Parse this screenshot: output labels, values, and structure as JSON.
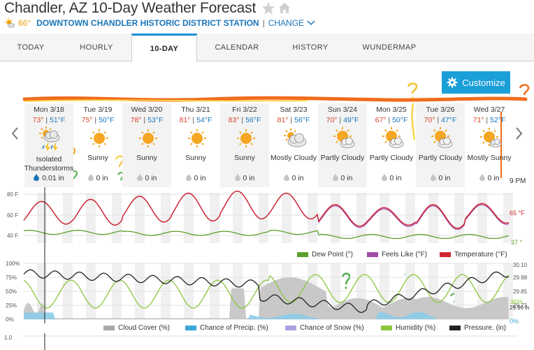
{
  "header": {
    "title": "Chandler, AZ 10-Day Weather Forecast",
    "current_temp": "66°",
    "station": "DOWNTOWN CHANDLER HISTORIC DISTRICT STATION",
    "separator": "|",
    "change_label": "CHANGE"
  },
  "tabs": [
    {
      "label": "TODAY"
    },
    {
      "label": "HOURLY"
    },
    {
      "label": "10-DAY",
      "active": true
    },
    {
      "label": "CALENDAR"
    },
    {
      "label": "HISTORY"
    },
    {
      "label": "WUNDERMAP"
    }
  ],
  "customize_label": "Customize",
  "days": [
    {
      "name": "Mon 3/18",
      "hi": "73°",
      "lo": "51°F",
      "cond": "Isolated Thunderstorms",
      "precip": "0.01 in",
      "icon": "thunderstorm-icon"
    },
    {
      "name": "Tue 3/19",
      "hi": "75°",
      "lo": "50°F",
      "cond": "Sunny",
      "precip": "0 in",
      "icon": "sunny-icon"
    },
    {
      "name": "Wed 3/20",
      "hi": "78°",
      "lo": "53°F",
      "cond": "Sunny",
      "precip": "0 in",
      "icon": "sunny-icon"
    },
    {
      "name": "Thu 3/21",
      "hi": "81°",
      "lo": "54°F",
      "cond": "Sunny",
      "precip": "0 in",
      "icon": "sunny-icon"
    },
    {
      "name": "Fri 3/22",
      "hi": "83°",
      "lo": "56°F",
      "cond": "Sunny",
      "precip": "0 in",
      "icon": "sunny-icon"
    },
    {
      "name": "Sat 3/23",
      "hi": "81°",
      "lo": "56°F",
      "cond": "Mostly Cloudy",
      "precip": "0 in",
      "icon": "mostly-cloudy-icon"
    },
    {
      "name": "Sun 3/24",
      "hi": "70°",
      "lo": "49°F",
      "cond": "Partly Cloudy",
      "precip": "0 in",
      "icon": "partly-cloudy-icon"
    },
    {
      "name": "Mon 3/25",
      "hi": "67°",
      "lo": "50°F",
      "cond": "Partly Cloudy",
      "precip": "0 in",
      "icon": "partly-cloudy-icon"
    },
    {
      "name": "Tue 3/26",
      "hi": "70°",
      "lo": "47°F",
      "cond": "Partly Cloudy",
      "precip": "0 in",
      "icon": "partly-cloudy-icon"
    },
    {
      "name": "Wed 3/27",
      "hi": "71°",
      "lo": "52°F",
      "cond": "Mostly Sunny",
      "precip": "0 in",
      "icon": "mostly-sunny-icon"
    }
  ],
  "time_label": "9 PM",
  "temp_chart": {
    "y_ticks": [
      "80 F",
      "60 F",
      "40 F"
    ],
    "current_temp_label": "65 °F",
    "current_dew_label": "37 °",
    "legend": [
      {
        "label": "Dew Point (°)",
        "color": "#5aa02c"
      },
      {
        "label": "Feels Like (°F)",
        "color": "#a54ba8"
      },
      {
        "label": "Temperature (°F)",
        "color": "#d0252e"
      }
    ]
  },
  "precip_chart": {
    "y_ticks": [
      "100%",
      "75%",
      "50%",
      "25%",
      "0%"
    ],
    "right_ticks": [
      "30.10",
      "29.98",
      "29.85",
      "29.73"
    ],
    "right_labels": [
      "36%",
      "29.96 in",
      "0%"
    ],
    "legend": [
      {
        "label": "Cloud Cover (%)",
        "color": "#a9a9a9"
      },
      {
        "label": "Chance of Precip. (%)",
        "color": "#3aa7d8"
      },
      {
        "label": "Chance of Snow (%)",
        "color": "#a8a4dc"
      },
      {
        "label": "Humidity (%)",
        "color": "#8cc63f"
      },
      {
        "label": "Pressure. (in)",
        "color": "#222222"
      }
    ]
  },
  "bottom_chart": {
    "y_tick": "1.0"
  }
}
